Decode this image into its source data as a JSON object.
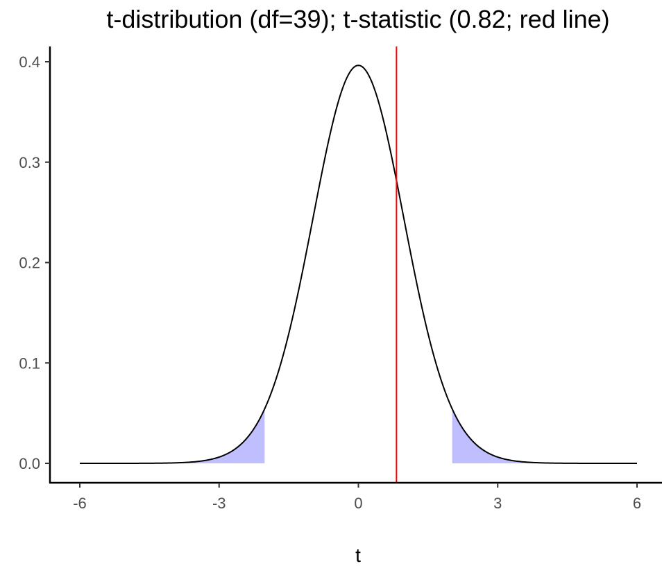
{
  "chart_data": {
    "type": "line",
    "title": "t-distribution (df=39); t-statistic (0.82; red line)",
    "xlabel": "t",
    "ylabel": "",
    "df": 39,
    "t_statistic": 0.82,
    "critical_value": 2.02,
    "xlim": [
      -6,
      6
    ],
    "ylim": [
      0,
      0.4
    ],
    "x_ticks": [
      -6,
      -3,
      0,
      3,
      6
    ],
    "x_tick_labels": [
      "-6",
      "-3",
      "0",
      "3",
      "6"
    ],
    "y_ticks": [
      0.0,
      0.1,
      0.2,
      0.3,
      0.4
    ],
    "y_tick_labels": [
      "0.0",
      "0.1",
      "0.2",
      "0.3",
      "0.4"
    ],
    "x": [
      -6,
      -5,
      -4,
      -3.5,
      -3,
      -2.5,
      -2,
      -1.5,
      -1,
      -0.5,
      0,
      0.5,
      1,
      1.5,
      2,
      2.5,
      3,
      3.5,
      4,
      5,
      6
    ],
    "y": [
      0.0,
      0.0,
      0.0003,
      0.0012,
      0.0056,
      0.0189,
      0.0539,
      0.1272,
      0.2399,
      0.3506,
      0.3963,
      0.3506,
      0.2399,
      0.1272,
      0.0539,
      0.0189,
      0.0056,
      0.0012,
      0.0003,
      0.0,
      0.0
    ],
    "series": [
      {
        "name": "density",
        "color": "#000000"
      },
      {
        "name": "t-statistic",
        "color": "#ff0000"
      },
      {
        "name": "rejection region",
        "color": "#bfbfff"
      }
    ],
    "grid": false,
    "legend": "none"
  }
}
